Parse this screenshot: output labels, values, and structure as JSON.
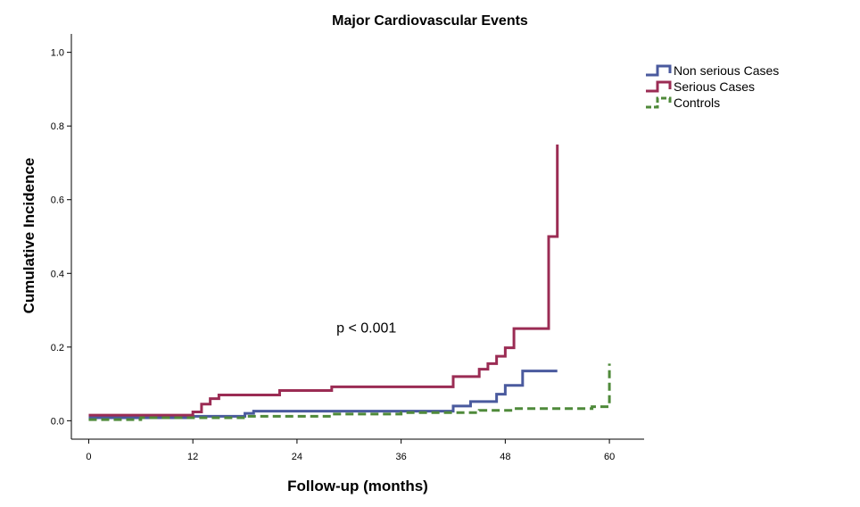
{
  "chart_data": {
    "type": "line",
    "title": "Major Cardiovascular Events",
    "xlabel": "Follow-up (months)",
    "ylabel": "Cumulative Incidence",
    "xlim": [
      -2,
      64
    ],
    "ylim": [
      -0.05,
      1.05
    ],
    "xticks": [
      0,
      12,
      24,
      36,
      48,
      60
    ],
    "yticks": [
      0.0,
      0.2,
      0.4,
      0.6,
      0.8,
      1.0
    ],
    "xtick_labels": [
      "0",
      "12",
      "24",
      "36",
      "48",
      "60"
    ],
    "ytick_labels": [
      "0.0",
      "0.2",
      "0.4",
      "0.6",
      "0.8",
      "1.0"
    ],
    "annotation": {
      "text": "p < 0.001",
      "x": 32,
      "y": 0.24
    },
    "legend_position": "top-right",
    "grid": false,
    "series": [
      {
        "name": "Non serious Cases",
        "color": "#4a5a9e",
        "dash": "solid",
        "steps": [
          [
            0,
            0.008
          ],
          [
            12,
            0.012
          ],
          [
            18,
            0.02
          ],
          [
            19,
            0.026
          ],
          [
            42,
            0.04
          ],
          [
            44,
            0.052
          ],
          [
            47,
            0.072
          ],
          [
            48,
            0.096
          ],
          [
            50,
            0.135
          ],
          [
            54,
            0.135
          ]
        ]
      },
      {
        "name": "Serious Cases",
        "color": "#9b2c54",
        "dash": "solid",
        "steps": [
          [
            0,
            0.015
          ],
          [
            12,
            0.024
          ],
          [
            13,
            0.045
          ],
          [
            14,
            0.06
          ],
          [
            15,
            0.07
          ],
          [
            22,
            0.082
          ],
          [
            28,
            0.092
          ],
          [
            42,
            0.12
          ],
          [
            45,
            0.14
          ],
          [
            46,
            0.155
          ],
          [
            47,
            0.175
          ],
          [
            48,
            0.198
          ],
          [
            49,
            0.25
          ],
          [
            53,
            0.5
          ],
          [
            54,
            0.75
          ]
        ]
      },
      {
        "name": "Controls",
        "color": "#4f8a3a",
        "dash": "dashed",
        "steps": [
          [
            0,
            0.003
          ],
          [
            6,
            0.008
          ],
          [
            18,
            0.012
          ],
          [
            28,
            0.018
          ],
          [
            36,
            0.022
          ],
          [
            45,
            0.028
          ],
          [
            49,
            0.033
          ],
          [
            58,
            0.038
          ],
          [
            60,
            0.155
          ]
        ]
      }
    ]
  }
}
